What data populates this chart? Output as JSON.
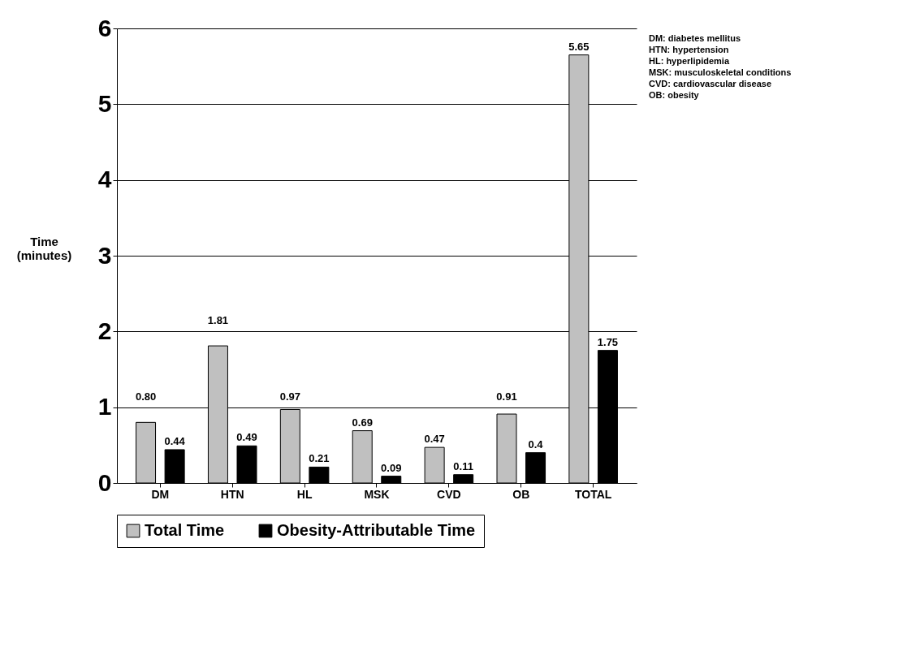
{
  "chart_data": {
    "type": "bar",
    "ylabel": "Time (minutes)",
    "categories": [
      "DM",
      "HTN",
      "HL",
      "MSK",
      "CVD",
      "OB",
      "TOTAL"
    ],
    "series": [
      {
        "name": "Total Time",
        "color": "#c0c0c0",
        "values": [
          0.8,
          1.81,
          0.97,
          0.69,
          0.47,
          0.91,
          5.65
        ],
        "value_labels": [
          "0.80",
          "1.81",
          "0.97",
          "0.69",
          "0.47",
          "0.91",
          "5.65"
        ]
      },
      {
        "name": "Obesity-Attributable Time",
        "color": "#000000",
        "values": [
          0.44,
          0.49,
          0.21,
          0.09,
          0.11,
          0.4,
          1.75
        ],
        "value_labels": [
          "0.44",
          "0.49",
          "0.21",
          "0.09",
          "0.11",
          "0.4",
          "1.75"
        ]
      }
    ],
    "ylim": [
      0,
      6
    ],
    "yticks": [
      {
        "value": 0,
        "label": "0"
      },
      {
        "value": 1,
        "label": "1"
      },
      {
        "value": 2,
        "label": "2"
      },
      {
        "value": 3,
        "label": "3"
      },
      {
        "value": 4,
        "label": "4"
      },
      {
        "value": 5,
        "label": "5"
      },
      {
        "value": 6,
        "label": "6"
      }
    ],
    "grid": "y",
    "legend": "bottom",
    "annotations": [
      "DM: diabetes mellitus",
      "HTN: hypertension",
      "HL: hyperlipidemia",
      "MSK: musculoskeletal conditions",
      "CVD: cardiovascular disease",
      "OB: obesity"
    ]
  }
}
